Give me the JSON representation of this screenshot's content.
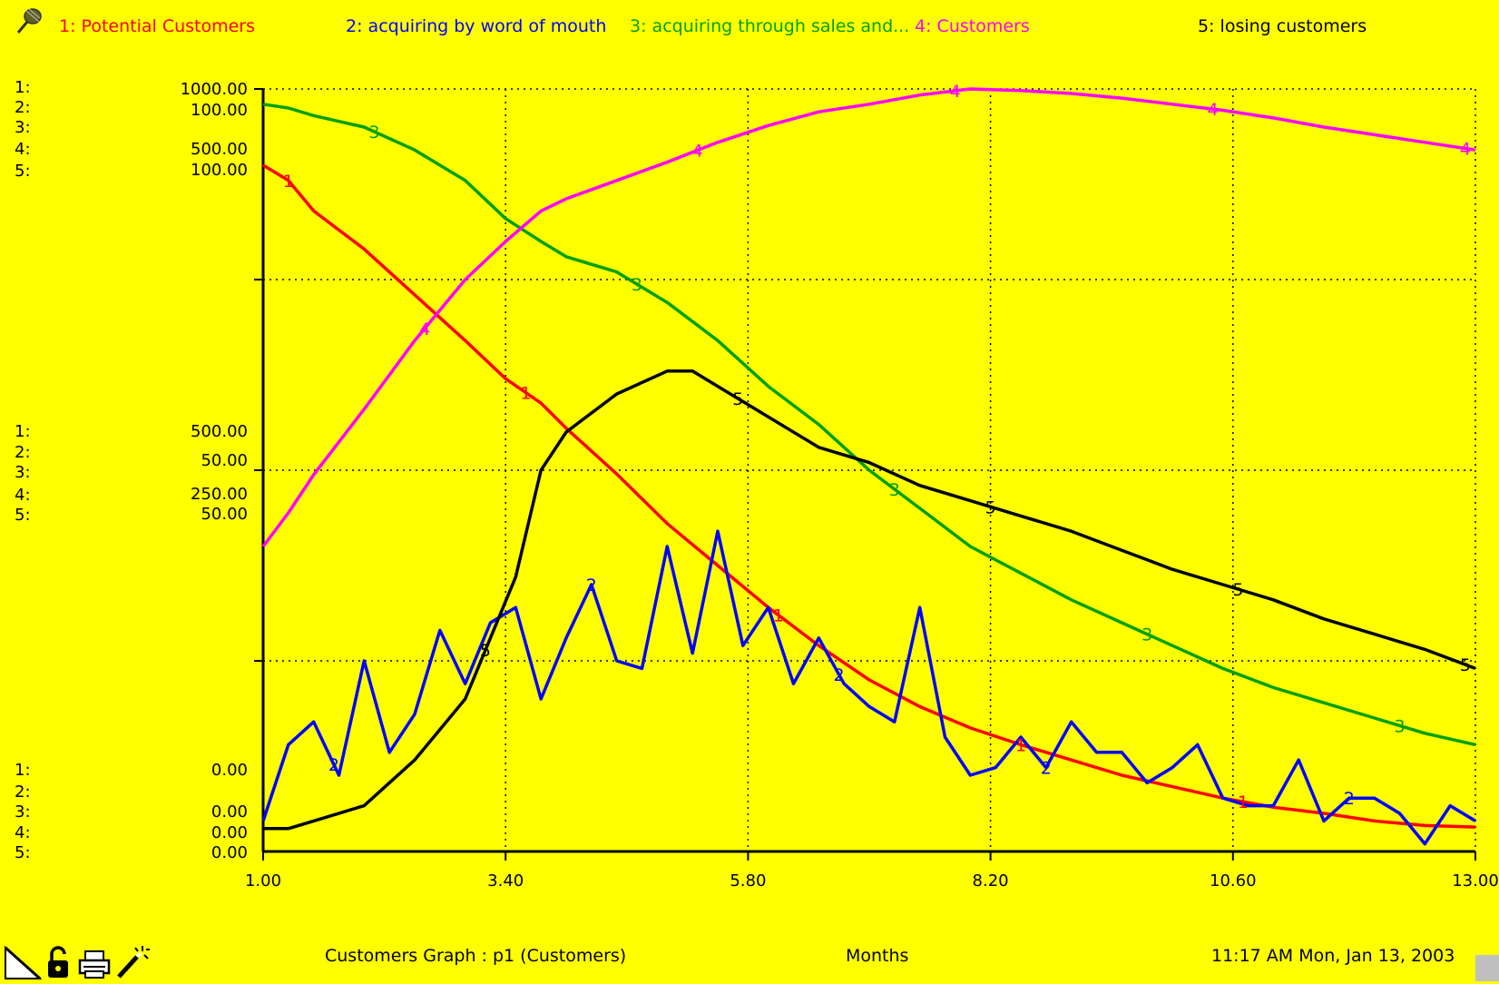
{
  "legend": [
    {
      "num": "1:",
      "name": "Potential Customers",
      "color": "#ff0000"
    },
    {
      "num": "2:",
      "name": "acquiring by word of mouth",
      "color": "#0000ff"
    },
    {
      "num": "3:",
      "name": "acquiring through sales and...",
      "color": "#00a000"
    },
    {
      "num": "4:",
      "name": "Customers",
      "color": "#ff00ff"
    },
    {
      "num": "5:",
      "name": "losing customers",
      "color": "#000000"
    }
  ],
  "left_scale": {
    "series_labels": [
      "1:",
      "2:",
      "3:",
      "4:",
      "5:"
    ],
    "top": [
      "1000.00",
      "100.00",
      "500.00",
      "100.00"
    ],
    "mid": [
      "500.00",
      "50.00",
      "250.00",
      "50.00"
    ],
    "bottom": [
      "0.00",
      "0.00",
      "0.00",
      "0.00"
    ]
  },
  "footer": {
    "graph_title": "Customers Graph : p1 (Customers)",
    "x_unit": "Months",
    "timestamp": "11:17 AM   Mon, Jan 13, 2003"
  },
  "icons": [
    "page-corner-icon",
    "lock-icon",
    "printer-icon",
    "magic-wand-icon"
  ],
  "chart_data": {
    "type": "line",
    "xlabel": "Months",
    "xlim": [
      1,
      13
    ],
    "x_ticks": [
      "1.00",
      "3.40",
      "5.80",
      "8.20",
      "10.60",
      "13.00"
    ],
    "grid": true,
    "legend_placement": "top",
    "series": [
      {
        "id": "1",
        "name": "Potential Customers",
        "color": "#ff0000",
        "width": 3.5,
        "ylim": [
          0,
          1000
        ],
        "markers_x": [
          1.25,
          3.6,
          6.1,
          8.5,
          10.7
        ],
        "points": [
          [
            1,
            900
          ],
          [
            1.25,
            880
          ],
          [
            1.5,
            840
          ],
          [
            2,
            790
          ],
          [
            2.5,
            730
          ],
          [
            3,
            670
          ],
          [
            3.4,
            620
          ],
          [
            3.75,
            588
          ],
          [
            4,
            555
          ],
          [
            4.5,
            495
          ],
          [
            5,
            430
          ],
          [
            5.5,
            375
          ],
          [
            6,
            320
          ],
          [
            6.5,
            270
          ],
          [
            7,
            225
          ],
          [
            7.5,
            190
          ],
          [
            8,
            162
          ],
          [
            8.5,
            140
          ],
          [
            9,
            120
          ],
          [
            9.5,
            100
          ],
          [
            10,
            85
          ],
          [
            10.5,
            70
          ],
          [
            11,
            58
          ],
          [
            11.5,
            50
          ],
          [
            12,
            40
          ],
          [
            12.5,
            34
          ],
          [
            13,
            32
          ]
        ]
      },
      {
        "id": "2",
        "name": "acquiring by word of mouth",
        "color": "#0000ff",
        "width": 3.5,
        "ylim": [
          0,
          100
        ],
        "markers_x": [
          1.7,
          4.25,
          6.7,
          8.75,
          11.75
        ],
        "points": [
          [
            1,
            4
          ],
          [
            1.25,
            14
          ],
          [
            1.5,
            17
          ],
          [
            1.75,
            10
          ],
          [
            2,
            25
          ],
          [
            2.25,
            13
          ],
          [
            2.5,
            18
          ],
          [
            2.75,
            29
          ],
          [
            3,
            22
          ],
          [
            3.25,
            30
          ],
          [
            3.5,
            32
          ],
          [
            3.75,
            20
          ],
          [
            4,
            28
          ],
          [
            4.25,
            35
          ],
          [
            4.5,
            25
          ],
          [
            4.75,
            24
          ],
          [
            5,
            40
          ],
          [
            5.25,
            26
          ],
          [
            5.5,
            42
          ],
          [
            5.75,
            27
          ],
          [
            6,
            32
          ],
          [
            6.25,
            22
          ],
          [
            6.5,
            28
          ],
          [
            6.75,
            22
          ],
          [
            7,
            19
          ],
          [
            7.25,
            17
          ],
          [
            7.5,
            32
          ],
          [
            7.75,
            15
          ],
          [
            8,
            10
          ],
          [
            8.25,
            11
          ],
          [
            8.5,
            15
          ],
          [
            8.75,
            11
          ],
          [
            9,
            17
          ],
          [
            9.25,
            13
          ],
          [
            9.5,
            13
          ],
          [
            9.75,
            9
          ],
          [
            10,
            11
          ],
          [
            10.25,
            14
          ],
          [
            10.5,
            7
          ],
          [
            10.75,
            6
          ],
          [
            11,
            6
          ],
          [
            11.25,
            12
          ],
          [
            11.5,
            4
          ],
          [
            11.75,
            7
          ],
          [
            12,
            7
          ],
          [
            12.25,
            5
          ],
          [
            12.5,
            1
          ],
          [
            12.75,
            6
          ],
          [
            13,
            4
          ]
        ]
      },
      {
        "id": "3",
        "name": "acquiring through sales and...",
        "color": "#00a000",
        "width": 3.5,
        "ylim": [
          0,
          100
        ],
        "markers_x": [
          2.1,
          4.7,
          7.25,
          9.75,
          12.25
        ],
        "points": [
          [
            1,
            98
          ],
          [
            1.25,
            97.5
          ],
          [
            1.5,
            96.5
          ],
          [
            2,
            95
          ],
          [
            2.5,
            92
          ],
          [
            3,
            88
          ],
          [
            3.4,
            83
          ],
          [
            3.75,
            80
          ],
          [
            4,
            78
          ],
          [
            4.5,
            76
          ],
          [
            5,
            72
          ],
          [
            5.5,
            67
          ],
          [
            6,
            61
          ],
          [
            6.5,
            56
          ],
          [
            7,
            50
          ],
          [
            7.5,
            45
          ],
          [
            8,
            40
          ],
          [
            8.5,
            36.5
          ],
          [
            9,
            33
          ],
          [
            9.5,
            30
          ],
          [
            10,
            27
          ],
          [
            10.5,
            24
          ],
          [
            11,
            21.5
          ],
          [
            11.5,
            19.5
          ],
          [
            12,
            17.5
          ],
          [
            12.5,
            15.5
          ],
          [
            13,
            14
          ]
        ]
      },
      {
        "id": "4",
        "name": "Customers",
        "color": "#ff00ff",
        "width": 3.5,
        "ylim": [
          0,
          500
        ],
        "markers_x": [
          2.6,
          5.3,
          7.85,
          10.4,
          12.9
        ],
        "points": [
          [
            1,
            200
          ],
          [
            1.25,
            222
          ],
          [
            1.5,
            247
          ],
          [
            2,
            290
          ],
          [
            2.5,
            335
          ],
          [
            3,
            375
          ],
          [
            3.4,
            400
          ],
          [
            3.75,
            420
          ],
          [
            4,
            428
          ],
          [
            4.5,
            440
          ],
          [
            5,
            452
          ],
          [
            5.5,
            465
          ],
          [
            6,
            476
          ],
          [
            6.5,
            485
          ],
          [
            7,
            490
          ],
          [
            7.5,
            496
          ],
          [
            8,
            500
          ],
          [
            8.5,
            499
          ],
          [
            9,
            497
          ],
          [
            9.5,
            494
          ],
          [
            10,
            490
          ],
          [
            10.5,
            486
          ],
          [
            11,
            481
          ],
          [
            11.5,
            475
          ],
          [
            12,
            470
          ],
          [
            12.5,
            465
          ],
          [
            13,
            460
          ]
        ]
      },
      {
        "id": "5",
        "name": "losing customers",
        "color": "#000000",
        "width": 3.5,
        "ylim": [
          0,
          100
        ],
        "markers_x": [
          3.2,
          5.7,
          8.2,
          10.65,
          12.9
        ],
        "points": [
          [
            1,
            3
          ],
          [
            1.25,
            3
          ],
          [
            1.5,
            4
          ],
          [
            2,
            6
          ],
          [
            2.5,
            12
          ],
          [
            3,
            20
          ],
          [
            3.25,
            28
          ],
          [
            3.5,
            36
          ],
          [
            3.75,
            50
          ],
          [
            4,
            55
          ],
          [
            4.5,
            60
          ],
          [
            5,
            63
          ],
          [
            5.25,
            63
          ],
          [
            5.5,
            61
          ],
          [
            5.75,
            59
          ],
          [
            6,
            57
          ],
          [
            6.5,
            53
          ],
          [
            7,
            51
          ],
          [
            7.5,
            48
          ],
          [
            8,
            46
          ],
          [
            8.5,
            44
          ],
          [
            9,
            42
          ],
          [
            9.5,
            39.5
          ],
          [
            10,
            37
          ],
          [
            10.5,
            35
          ],
          [
            11,
            33
          ],
          [
            11.5,
            30.5
          ],
          [
            12,
            28.5
          ],
          [
            12.5,
            26.5
          ],
          [
            13,
            24
          ]
        ]
      }
    ]
  }
}
